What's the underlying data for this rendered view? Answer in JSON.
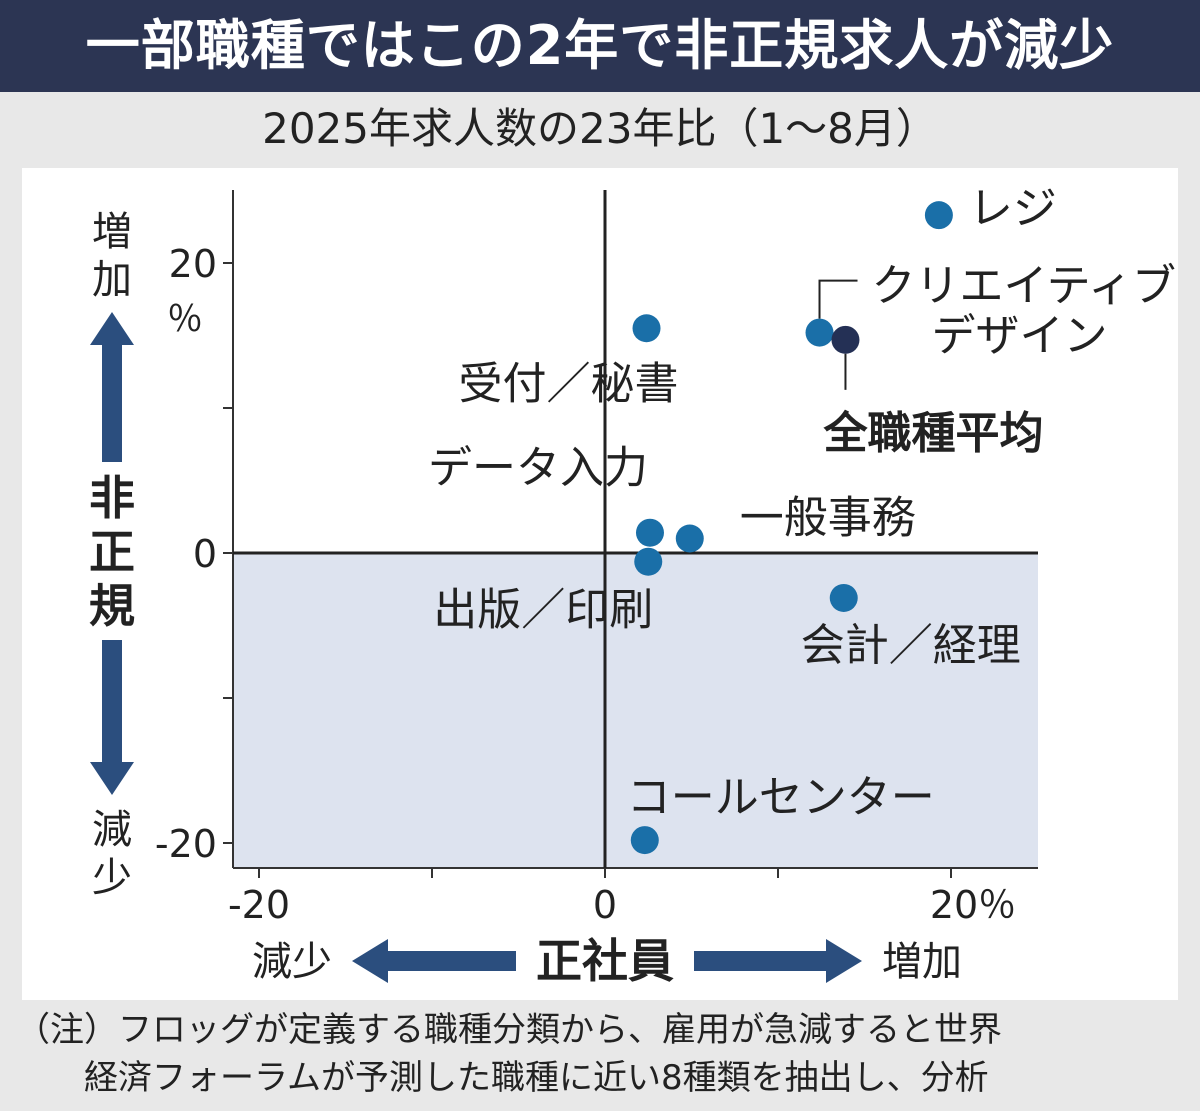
{
  "title": "一部職種ではこの2年で非正規求人が減少",
  "subtitle": "2025年求人数の23年比（1～8月）",
  "notes": [
    "（注）フロッグが定義する職種分類から、雇用が急減すると世界",
    "経済フォーラムが予測した職種に近い8種類を抽出し、分析"
  ],
  "colors": {
    "title_bg": "#2c3553",
    "point": "#1a6fa8",
    "average_point": "#243055",
    "shaded_quadrant": "#dde3ef",
    "arrow": "#2b4e7e"
  },
  "chart_data": {
    "type": "scatter",
    "xlabel": "正社員",
    "ylabel": "非正規",
    "xlim": [
      -22,
      25
    ],
    "ylim": [
      -21,
      25
    ],
    "x_ticks": [
      {
        "value": -20,
        "label": "-20"
      },
      {
        "value": 0,
        "label": "0"
      },
      {
        "value": 20,
        "label": "20％"
      }
    ],
    "y_ticks": [
      {
        "value": 20,
        "label": "20"
      },
      {
        "value": 0,
        "label": "0"
      },
      {
        "value": -20,
        "label": "-20"
      }
    ],
    "y_unit": "％",
    "x_axis_ends": {
      "decrease": "減少",
      "increase": "増加"
    },
    "y_axis_ends": {
      "increase": "増加",
      "decrease": "減少"
    },
    "shaded_region": "y < 0",
    "points": [
      {
        "name": "レジ",
        "x": 19.3,
        "y": 23.3
      },
      {
        "name": "クリエイティブデザイン",
        "x": 12.4,
        "y": 15.2
      },
      {
        "name": "全職種平均",
        "x": 13.9,
        "y": 14.7,
        "average": true
      },
      {
        "name": "受付／秘書",
        "x": 2.4,
        "y": 15.5
      },
      {
        "name": "データ入力",
        "x": 2.6,
        "y": 1.4
      },
      {
        "name": "一般事務",
        "x": 4.9,
        "y": 1.0
      },
      {
        "name": "出版／印刷",
        "x": 2.5,
        "y": -0.6
      },
      {
        "name": "会計／経理",
        "x": 13.8,
        "y": -3.1
      },
      {
        "name": "コールセンター",
        "x": 2.3,
        "y": -19.8
      }
    ],
    "point_labels": {
      "レジ": "レジ",
      "クリエイティブデザイン": [
        "クリエイティブ",
        "デザイン"
      ],
      "全職種平均": "全職種平均",
      "受付／秘書": "受付／秘書",
      "データ入力": "データ入力",
      "一般事務": "一般事務",
      "出版／印刷": "出版／印刷",
      "会計／経理": "会計／経理",
      "コールセンター": "コールセンター"
    }
  }
}
